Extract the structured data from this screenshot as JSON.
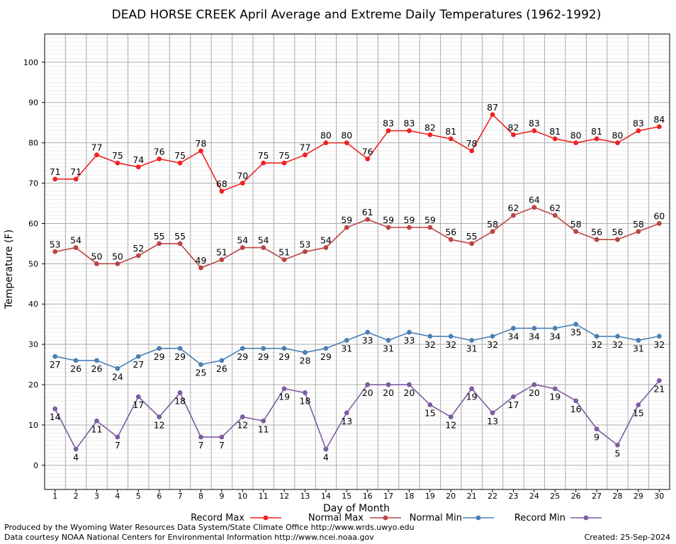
{
  "chart_data": {
    "type": "line",
    "title": "DEAD HORSE CREEK April Average and Extreme Daily Temperatures (1962-1992)",
    "xlabel": "Day of Month",
    "ylabel": "Temperature (F)",
    "ylim": [
      -6,
      107
    ],
    "yticks": [
      0,
      10,
      20,
      30,
      40,
      50,
      60,
      70,
      80,
      90,
      100
    ],
    "x": [
      1,
      2,
      3,
      4,
      5,
      6,
      7,
      8,
      9,
      10,
      11,
      12,
      13,
      14,
      15,
      16,
      17,
      18,
      19,
      20,
      21,
      22,
      23,
      24,
      25,
      26,
      27,
      28,
      29,
      30
    ],
    "grid": true,
    "series": [
      {
        "name": "Record Max",
        "color": "#ee2222",
        "label_pos": "above",
        "values": [
          71,
          71,
          77,
          75,
          74,
          76,
          75,
          78,
          68,
          70,
          75,
          75,
          77,
          80,
          80,
          76,
          83,
          83,
          82,
          81,
          78,
          87,
          82,
          83,
          81,
          80,
          81,
          80,
          83,
          84
        ]
      },
      {
        "name": "Normal Max",
        "color": "#bb4444",
        "label_pos": "above",
        "values": [
          53,
          54,
          50,
          50,
          52,
          55,
          55,
          49,
          51,
          54,
          54,
          51,
          53,
          54,
          59,
          61,
          59,
          59,
          59,
          56,
          55,
          58,
          62,
          64,
          62,
          58,
          56,
          56,
          58,
          60
        ]
      },
      {
        "name": "Normal Min",
        "color": "#4a80b4",
        "label_pos": "below",
        "values": [
          27,
          26,
          26,
          24,
          27,
          29,
          29,
          25,
          26,
          29,
          29,
          29,
          28,
          29,
          31,
          33,
          31,
          33,
          32,
          32,
          31,
          32,
          34,
          34,
          34,
          35,
          32,
          32,
          31,
          32
        ]
      },
      {
        "name": "Record Min",
        "color": "#7c5ca0",
        "label_pos": "below",
        "values": [
          14,
          4,
          11,
          7,
          17,
          12,
          18,
          7,
          7,
          12,
          11,
          19,
          18,
          4,
          13,
          20,
          20,
          20,
          15,
          12,
          19,
          13,
          17,
          20,
          19,
          16,
          9,
          5,
          15,
          21
        ]
      }
    ]
  },
  "footer": {
    "credit_line1": "Produced by the Wyoming Water Resources Data System/State Climate Office http://www.wrds.uwyo.edu",
    "credit_line2": "Data courtesy NOAA National Centers for Environmental Information http://www.ncei.noaa.gov",
    "created": "Created:  25-Sep-2024"
  }
}
